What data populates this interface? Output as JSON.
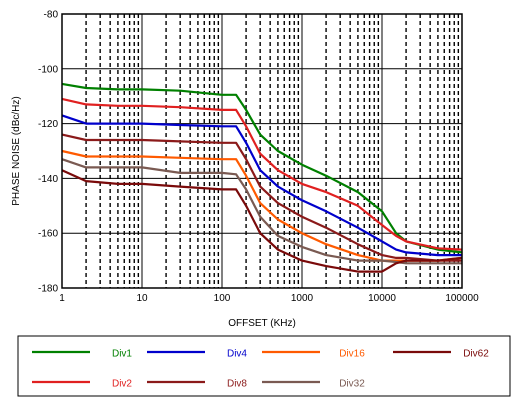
{
  "chart_data": {
    "type": "line",
    "title": "",
    "xlabel": "OFFSET (KHz)",
    "ylabel": "PHASE NOISE (dBc/Hz)",
    "x_scale": "log",
    "xlim": [
      1,
      100000
    ],
    "ylim": [
      -180,
      -80
    ],
    "x_ticks": [
      1,
      10,
      100,
      1000,
      10000,
      100000
    ],
    "x_tick_labels": [
      "1",
      "10",
      "100",
      "1000",
      "10000",
      "100000"
    ],
    "y_ticks": [
      -180,
      -160,
      -140,
      -120,
      -100,
      -80
    ],
    "y_tick_labels": [
      "-180",
      "-160",
      "-140",
      "-120",
      "-100",
      "-80"
    ],
    "grid": true,
    "legend_position": "bottom",
    "legend_order": [
      "Div1",
      "Div4",
      "Div16",
      "Div62",
      "Div2",
      "Div8",
      "Div32"
    ],
    "series": [
      {
        "name": "Div1",
        "color": "#008000",
        "x": [
          1,
          2,
          5,
          10,
          30,
          100,
          150,
          200,
          300,
          500,
          1000,
          2000,
          5000,
          10000,
          15000,
          20000,
          50000,
          100000
        ],
        "y": [
          -105.5,
          -107,
          -107.5,
          -107.5,
          -108,
          -109.5,
          -109.5,
          -115,
          -124,
          -130,
          -135,
          -139,
          -145,
          -152,
          -160,
          -163,
          -166,
          -167
        ]
      },
      {
        "name": "Div2",
        "color": "#e02020",
        "x": [
          1,
          2,
          5,
          10,
          30,
          100,
          150,
          200,
          300,
          500,
          1000,
          2000,
          5000,
          10000,
          15000,
          20000,
          50000,
          100000
        ],
        "y": [
          -111,
          -113,
          -113.5,
          -113.5,
          -114,
          -115,
          -115,
          -121,
          -131,
          -137,
          -142,
          -145,
          -150,
          -157,
          -161,
          -163,
          -165.5,
          -166
        ]
      },
      {
        "name": "Div4",
        "color": "#0000cc",
        "x": [
          1,
          2,
          5,
          10,
          30,
          100,
          150,
          200,
          300,
          500,
          1000,
          2000,
          5000,
          10000,
          15000,
          20000,
          50000,
          100000
        ],
        "y": [
          -117,
          -120,
          -120,
          -120,
          -120.5,
          -121,
          -121,
          -127,
          -137,
          -143,
          -148,
          -152,
          -158,
          -163,
          -166,
          -167,
          -168,
          -168
        ]
      },
      {
        "name": "Div8",
        "color": "#8b1a1a",
        "x": [
          1,
          2,
          5,
          10,
          30,
          100,
          150,
          200,
          300,
          500,
          1000,
          2000,
          5000,
          10000,
          15000,
          20000,
          50000,
          100000
        ],
        "y": [
          -124,
          -126,
          -126,
          -126,
          -126.5,
          -127,
          -127,
          -133,
          -143,
          -149,
          -154,
          -158,
          -164,
          -168,
          -169,
          -169,
          -170,
          -170
        ]
      },
      {
        "name": "Div16",
        "color": "#ff5a00",
        "x": [
          1,
          2,
          5,
          10,
          30,
          100,
          150,
          200,
          300,
          500,
          1000,
          2000,
          5000,
          10000,
          15000,
          20000,
          50000,
          100000
        ],
        "y": [
          -130,
          -132,
          -132,
          -132,
          -132.5,
          -133,
          -133,
          -139,
          -149,
          -155,
          -160,
          -164,
          -168,
          -170,
          -170,
          -170,
          -170,
          -169
        ]
      },
      {
        "name": "Div32",
        "color": "#7a5a52",
        "x": [
          1,
          2,
          5,
          10,
          30,
          100,
          150,
          200,
          300,
          500,
          1000,
          2000,
          5000,
          10000,
          15000,
          20000,
          50000,
          100000
        ],
        "y": [
          -133,
          -136,
          -136,
          -136,
          -138,
          -138,
          -138.5,
          -144,
          -154,
          -161,
          -165,
          -168,
          -170,
          -170,
          -170.5,
          -171,
          -171,
          -171
        ]
      },
      {
        "name": "Div62",
        "color": "#7a0a0a",
        "x": [
          1,
          2,
          5,
          10,
          30,
          100,
          150,
          200,
          300,
          500,
          1000,
          2000,
          5000,
          10000,
          15000,
          20000,
          50000,
          100000
        ],
        "y": [
          -137,
          -141,
          -142,
          -142,
          -143,
          -144,
          -144,
          -150,
          -160,
          -166,
          -170,
          -172,
          -174,
          -174,
          -171,
          -170,
          -170,
          -169
        ]
      }
    ]
  }
}
